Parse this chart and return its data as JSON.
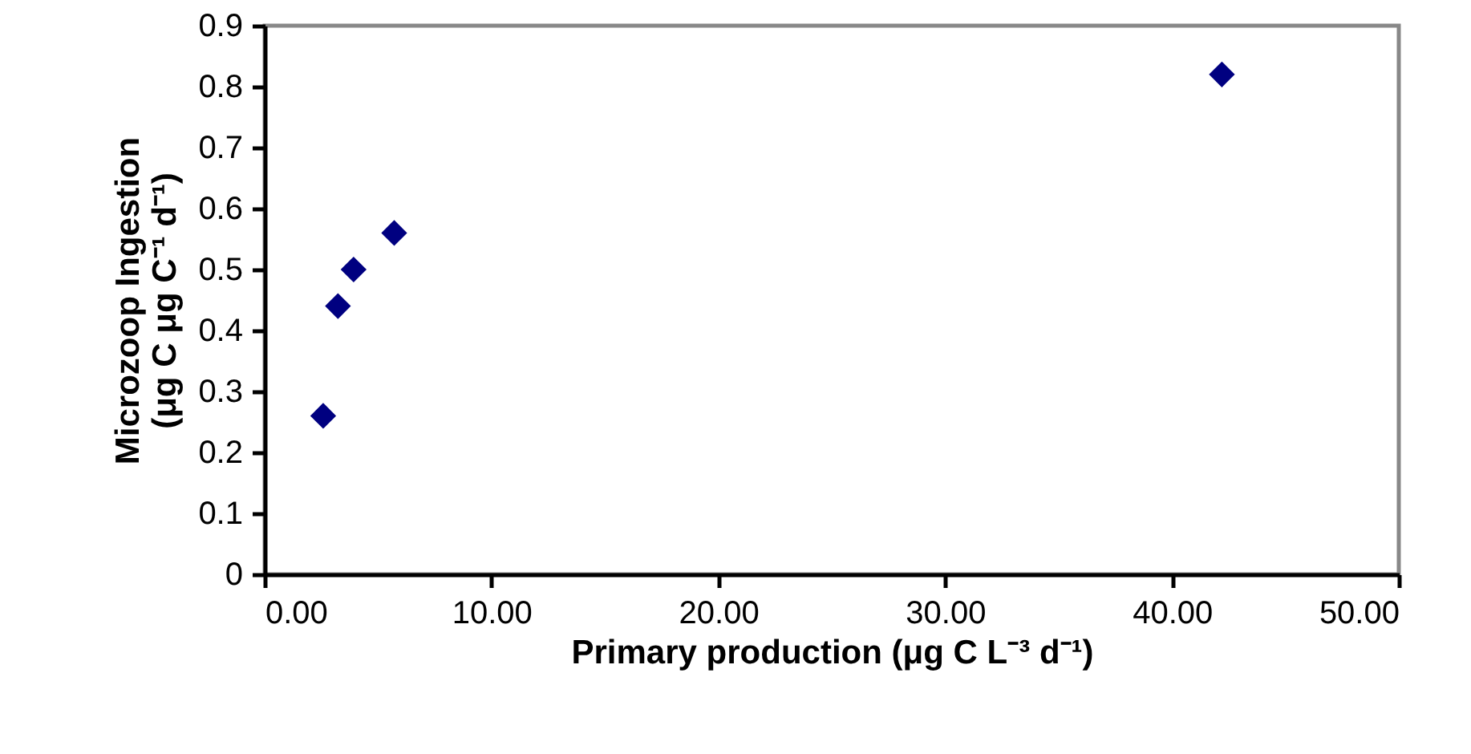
{
  "chart_data": {
    "type": "scatter",
    "xlabel": "Primary production (μg C L⁻³ d⁻¹)",
    "ylabel": "Microzoop Ingestion\n(μg C μg C⁻¹ d⁻¹)",
    "x": [
      2.58,
      3.23,
      3.92,
      5.71,
      42.2
    ],
    "series": [
      {
        "color": "#000080",
        "values": [
          0.26,
          0.44,
          0.5,
          0.56,
          0.82
        ]
      }
    ],
    "marker": "diamond",
    "xlim": [
      0,
      50
    ],
    "xticks": [
      {
        "value": 0,
        "label": "0.00"
      },
      {
        "value": 10,
        "label": "10.00"
      },
      {
        "value": 20,
        "label": "20.00"
      },
      {
        "value": 30,
        "label": "30.00"
      },
      {
        "value": 40,
        "label": "40.00"
      },
      {
        "value": 50,
        "label": "50.00"
      }
    ],
    "ylim": [
      0,
      0.9
    ],
    "yticks": [
      0,
      0.1,
      0.2,
      0.3,
      0.4,
      0.5,
      0.6,
      0.7,
      0.8,
      0.9
    ],
    "grid": false
  }
}
